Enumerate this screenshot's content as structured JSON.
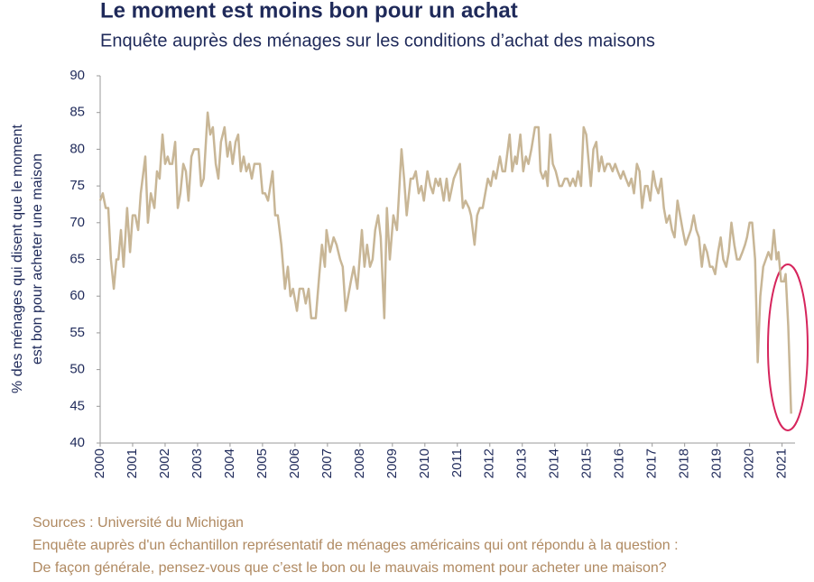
{
  "chart_data": {
    "type": "line",
    "title": "Le moment est moins bon pour un achat",
    "subtitle": "Enquête auprès des ménages sur les conditions d’achat des maisons",
    "y_label": [
      "% des ménages qui disent que le moment",
      "est bon pour acheter une maison"
    ],
    "sources": [
      "Sources : Université du Michigan",
      "Enquête auprès d'un échantillon représentatif de ménages américains qui ont répondu à la question :",
      "De façon générale, pensez-vous que c’est le bon ou le mauvais moment pour acheter une maison?"
    ],
    "color": "#c8b696",
    "xlim": [
      2000,
      2021.4
    ],
    "xticks": [
      2000,
      2001,
      2002,
      2003,
      2004,
      2005,
      2006,
      2007,
      2008,
      2009,
      2010,
      2011,
      2012,
      2013,
      2014,
      2015,
      2016,
      2017,
      2018,
      2019,
      2020,
      2021
    ],
    "ylim": [
      40,
      90
    ],
    "yticks": [
      40,
      45,
      50,
      55,
      60,
      65,
      70,
      75,
      80,
      85,
      90
    ],
    "x": [
      2000.0,
      2000.08,
      2000.17,
      2000.25,
      2000.33,
      2000.42,
      2000.5,
      2000.56,
      2000.64,
      2000.72,
      2000.83,
      2000.92,
      2001.0,
      2001.08,
      2001.17,
      2001.25,
      2001.39,
      2001.47,
      2001.56,
      2001.67,
      2001.75,
      2001.83,
      2001.92,
      2002.0,
      2002.08,
      2002.14,
      2002.22,
      2002.31,
      2002.39,
      2002.47,
      2002.56,
      2002.64,
      2002.72,
      2002.81,
      2002.89,
      2003.03,
      2003.11,
      2003.19,
      2003.31,
      2003.39,
      2003.47,
      2003.56,
      2003.64,
      2003.72,
      2003.83,
      2003.92,
      2004.0,
      2004.08,
      2004.17,
      2004.25,
      2004.33,
      2004.42,
      2004.5,
      2004.58,
      2004.67,
      2004.75,
      2004.83,
      2004.92,
      2005.0,
      2005.08,
      2005.17,
      2005.31,
      2005.39,
      2005.47,
      2005.58,
      2005.69,
      2005.78,
      2005.86,
      2005.94,
      2006.06,
      2006.14,
      2006.25,
      2006.33,
      2006.42,
      2006.5,
      2006.64,
      2006.75,
      2006.83,
      2006.92,
      2006.97,
      2007.08,
      2007.19,
      2007.28,
      2007.39,
      2007.47,
      2007.56,
      2007.64,
      2007.72,
      2007.81,
      2007.92,
      2008.06,
      2008.14,
      2008.22,
      2008.31,
      2008.39,
      2008.47,
      2008.56,
      2008.64,
      2008.75,
      2008.83,
      2008.92,
      2009.03,
      2009.14,
      2009.28,
      2009.36,
      2009.44,
      2009.56,
      2009.64,
      2009.72,
      2009.81,
      2009.89,
      2009.97,
      2010.08,
      2010.17,
      2010.25,
      2010.33,
      2010.42,
      2010.47,
      2010.58,
      2010.67,
      2010.75,
      2010.89,
      2011.08,
      2011.17,
      2011.25,
      2011.36,
      2011.42,
      2011.53,
      2011.61,
      2011.69,
      2011.78,
      2011.86,
      2011.94,
      2012.03,
      2012.11,
      2012.19,
      2012.31,
      2012.39,
      2012.47,
      2012.61,
      2012.69,
      2012.78,
      2012.83,
      2012.94,
      2013.03,
      2013.11,
      2013.19,
      2013.28,
      2013.39,
      2013.5,
      2013.56,
      2013.64,
      2013.72,
      2013.78,
      2013.86,
      2013.94,
      2014.03,
      2014.14,
      2014.22,
      2014.31,
      2014.39,
      2014.47,
      2014.56,
      2014.64,
      2014.72,
      2014.81,
      2014.89,
      2014.97,
      2015.03,
      2015.11,
      2015.19,
      2015.28,
      2015.36,
      2015.44,
      2015.53,
      2015.61,
      2015.69,
      2015.78,
      2015.86,
      2015.94,
      2016.03,
      2016.11,
      2016.19,
      2016.28,
      2016.36,
      2016.44,
      2016.53,
      2016.61,
      2016.69,
      2016.78,
      2016.86,
      2016.94,
      2017.03,
      2017.11,
      2017.19,
      2017.28,
      2017.36,
      2017.44,
      2017.53,
      2017.61,
      2017.69,
      2017.78,
      2017.86,
      2017.94,
      2018.03,
      2018.11,
      2018.19,
      2018.28,
      2018.36,
      2018.44,
      2018.53,
      2018.61,
      2018.69,
      2018.78,
      2018.86,
      2018.94,
      2019.03,
      2019.11,
      2019.19,
      2019.28,
      2019.36,
      2019.44,
      2019.53,
      2019.61,
      2019.69,
      2019.78,
      2019.86,
      2019.92,
      2020.0,
      2020.08,
      2020.17,
      2020.25,
      2020.33,
      2020.42,
      2020.5,
      2020.58,
      2020.67,
      2020.75,
      2020.83,
      2020.89,
      2020.97,
      2021.06,
      2021.11,
      2021.19,
      2021.28
    ],
    "values": [
      73,
      74,
      72,
      72,
      65,
      61,
      65,
      65,
      69,
      64,
      72,
      66,
      71,
      71,
      69,
      74,
      79,
      70,
      74,
      72,
      77,
      76,
      82,
      78,
      79,
      78,
      78,
      81,
      72,
      74,
      78,
      77,
      73,
      79,
      80,
      80,
      75,
      76,
      85,
      82,
      83,
      78,
      76,
      81,
      83,
      79,
      81,
      78,
      81,
      82,
      77,
      79,
      77,
      78,
      76,
      78,
      78,
      78,
      74,
      74,
      73,
      77,
      71,
      71,
      67,
      61,
      64,
      60,
      61,
      58,
      61,
      61,
      59,
      61,
      57,
      57,
      63,
      67,
      64,
      69,
      66,
      68,
      67,
      65,
      64,
      58,
      60,
      62,
      64,
      61,
      69,
      64,
      67,
      64,
      65,
      69,
      71,
      68,
      57,
      72,
      65,
      71,
      69,
      80,
      76,
      71,
      76,
      76,
      77,
      74,
      75,
      73,
      77,
      75,
      74,
      76,
      75,
      76,
      73,
      76,
      73,
      76,
      78,
      72,
      73,
      72,
      71,
      67,
      71,
      72,
      72,
      74,
      76,
      75,
      77,
      76,
      79,
      77,
      77,
      82,
      77,
      79,
      78,
      82,
      77,
      79,
      78,
      80,
      83,
      83,
      77,
      76,
      77,
      75,
      82,
      78,
      77,
      75,
      75,
      76,
      76,
      75,
      76,
      75,
      77,
      75,
      83,
      82,
      79,
      75,
      80,
      81,
      77,
      79,
      77,
      78,
      78,
      77,
      78,
      77,
      76,
      77,
      76,
      75,
      76,
      74,
      78,
      77,
      72,
      75,
      75,
      73,
      77,
      75,
      74,
      76,
      72,
      70,
      71,
      69,
      68,
      73,
      71,
      69,
      67,
      68,
      69,
      71,
      69,
      68,
      64,
      67,
      66,
      64,
      64,
      63,
      66,
      68,
      65,
      64,
      66,
      70,
      67,
      65,
      65,
      66,
      67,
      68,
      70,
      70,
      65,
      51,
      60,
      64,
      65,
      66,
      65,
      69,
      65,
      66,
      62,
      62,
      63,
      56,
      44
    ]
  }
}
